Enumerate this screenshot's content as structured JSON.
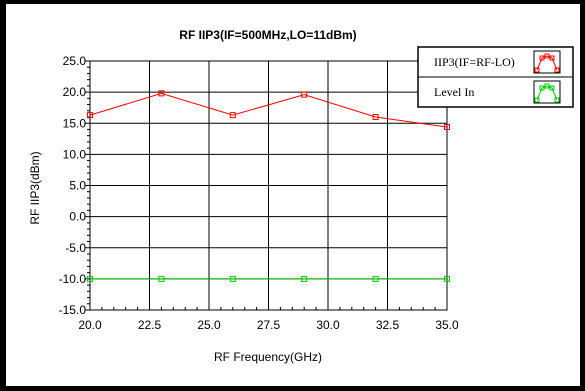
{
  "chart_data": {
    "type": "line",
    "title": "RF IIP3(IF=500MHz,LO=11dBm)",
    "xlabel": "RF Frequency(GHz)",
    "ylabel": "RF IIP3(dBm)",
    "xlim": [
      20.0,
      35.0
    ],
    "ylim": [
      -15.0,
      25.0
    ],
    "x_ticks": [
      "20.0",
      "22.5",
      "25.0",
      "27.5",
      "30.0",
      "32.5",
      "35.0"
    ],
    "y_ticks": [
      "25.0",
      "20.0",
      "15.0",
      "10.0",
      "5.0",
      "0.0",
      "-5.0",
      "-10.0",
      "-15.0"
    ],
    "grid": true,
    "legend_position": "top-right",
    "series": [
      {
        "name": "IIP3(IF=RF-LO)",
        "color": "#ff0000",
        "marker": "square",
        "x": [
          20,
          23,
          26,
          29,
          32,
          35
        ],
        "y": [
          16.3,
          19.8,
          16.3,
          19.6,
          16.0,
          14.4
        ]
      },
      {
        "name": "Level In",
        "color": "#00cc00",
        "marker": "square",
        "x": [
          20,
          23,
          26,
          29,
          32,
          35
        ],
        "y": [
          -10,
          -10,
          -10,
          -10,
          -10,
          -10
        ]
      }
    ]
  }
}
